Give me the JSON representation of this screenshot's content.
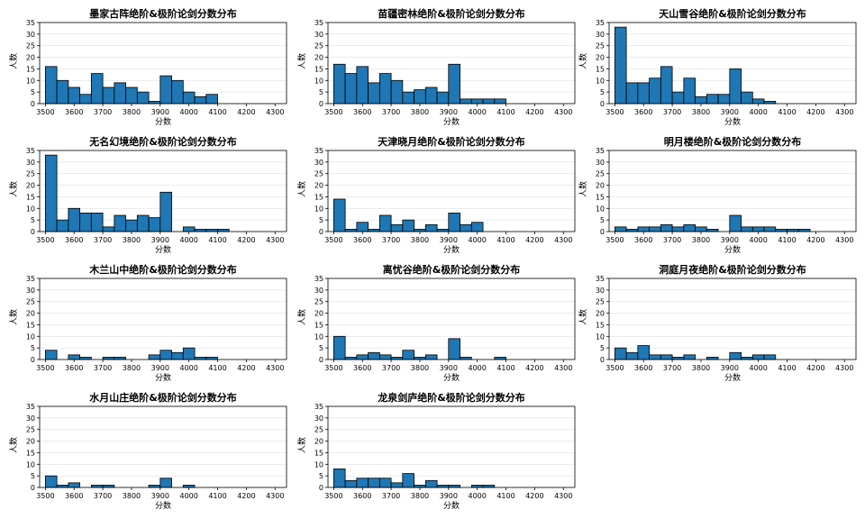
{
  "colors": {
    "bar": "#1f77b4",
    "edge": "#000000",
    "grid": "#d9d9d9"
  },
  "chart_data": [
    {
      "type": "bar",
      "title": "墨家古阵绝阶&极阶论剑分数分布",
      "xlabel": "分数",
      "ylabel": "人数",
      "bin_start": 3500,
      "bin_width": 40,
      "xlim": [
        3480,
        4340
      ],
      "ylim": [
        0,
        35
      ],
      "xticks": [
        3500,
        3600,
        3700,
        3800,
        3900,
        4000,
        4100,
        4200,
        4300
      ],
      "yticks": [
        0,
        5,
        10,
        15,
        20,
        25,
        30,
        35
      ],
      "grid": "y",
      "values": [
        16,
        10,
        7,
        4,
        13,
        7,
        9,
        7,
        5,
        1,
        12,
        10,
        5,
        3,
        4,
        0,
        0,
        0,
        0,
        0,
        0
      ]
    },
    {
      "type": "bar",
      "title": "苗疆密林绝阶&极阶论剑分数分布",
      "xlabel": "分数",
      "ylabel": "人数",
      "bin_start": 3500,
      "bin_width": 40,
      "xlim": [
        3480,
        4340
      ],
      "ylim": [
        0,
        35
      ],
      "xticks": [
        3500,
        3600,
        3700,
        3800,
        3900,
        4000,
        4100,
        4200,
        4300
      ],
      "yticks": [
        0,
        5,
        10,
        15,
        20,
        25,
        30,
        35
      ],
      "grid": "y",
      "values": [
        17,
        13,
        16,
        9,
        13,
        10,
        5,
        6,
        7,
        5,
        17,
        2,
        2,
        2,
        2,
        0,
        0,
        0,
        0,
        0,
        0
      ]
    },
    {
      "type": "bar",
      "title": "天山雪谷绝阶&极阶论剑分数分布",
      "xlabel": "分数",
      "ylabel": "人数",
      "bin_start": 3500,
      "bin_width": 40,
      "xlim": [
        3480,
        4340
      ],
      "ylim": [
        0,
        35
      ],
      "xticks": [
        3500,
        3600,
        3700,
        3800,
        3900,
        4000,
        4100,
        4200,
        4300
      ],
      "yticks": [
        0,
        5,
        10,
        15,
        20,
        25,
        30,
        35
      ],
      "grid": "y",
      "values": [
        33,
        9,
        9,
        11,
        16,
        5,
        11,
        3,
        4,
        4,
        15,
        5,
        2,
        1,
        0,
        0,
        0,
        0,
        0,
        0,
        0
      ]
    },
    {
      "type": "bar",
      "title": "无名幻境绝阶&极阶论剑分数分布",
      "xlabel": "分数",
      "ylabel": "人数",
      "bin_start": 3500,
      "bin_width": 40,
      "xlim": [
        3480,
        4340
      ],
      "ylim": [
        0,
        35
      ],
      "xticks": [
        3500,
        3600,
        3700,
        3800,
        3900,
        4000,
        4100,
        4200,
        4300
      ],
      "yticks": [
        0,
        5,
        10,
        15,
        20,
        25,
        30,
        35
      ],
      "grid": "y",
      "values": [
        33,
        5,
        10,
        8,
        8,
        2,
        7,
        5,
        7,
        6,
        17,
        0,
        2,
        1,
        1,
        1,
        0,
        0,
        0,
        0,
        0
      ]
    },
    {
      "type": "bar",
      "title": "天津晓月绝阶&极阶论剑分数分布",
      "xlabel": "分数",
      "ylabel": "人数",
      "bin_start": 3500,
      "bin_width": 40,
      "xlim": [
        3480,
        4340
      ],
      "ylim": [
        0,
        35
      ],
      "xticks": [
        3500,
        3600,
        3700,
        3800,
        3900,
        4000,
        4100,
        4200,
        4300
      ],
      "yticks": [
        0,
        5,
        10,
        15,
        20,
        25,
        30,
        35
      ],
      "grid": "y",
      "values": [
        14,
        1,
        4,
        1,
        7,
        3,
        5,
        1,
        3,
        1,
        8,
        3,
        4,
        0,
        0,
        0,
        0,
        0,
        0,
        0,
        0
      ]
    },
    {
      "type": "bar",
      "title": "明月楼绝阶&极阶论剑分数分布",
      "xlabel": "分数",
      "ylabel": "人数",
      "bin_start": 3500,
      "bin_width": 40,
      "xlim": [
        3480,
        4340
      ],
      "ylim": [
        0,
        35
      ],
      "xticks": [
        3500,
        3600,
        3700,
        3800,
        3900,
        4000,
        4100,
        4200,
        4300
      ],
      "yticks": [
        0,
        5,
        10,
        15,
        20,
        25,
        30,
        35
      ],
      "grid": "y",
      "values": [
        2,
        1,
        2,
        2,
        3,
        2,
        3,
        2,
        1,
        0,
        7,
        2,
        2,
        2,
        1,
        1,
        1,
        0,
        0,
        0,
        0
      ]
    },
    {
      "type": "bar",
      "title": "木兰山中绝阶&极阶论剑分数分布",
      "xlabel": "分数",
      "ylabel": "人数",
      "bin_start": 3500,
      "bin_width": 40,
      "xlim": [
        3480,
        4340
      ],
      "ylim": [
        0,
        35
      ],
      "xticks": [
        3500,
        3600,
        3700,
        3800,
        3900,
        4000,
        4100,
        4200,
        4300
      ],
      "yticks": [
        0,
        5,
        10,
        15,
        20,
        25,
        30,
        35
      ],
      "grid": "y",
      "values": [
        4,
        0,
        2,
        1,
        0,
        1,
        1,
        0,
        0,
        2,
        4,
        3,
        5,
        1,
        1,
        0,
        0,
        0,
        0,
        0,
        0
      ]
    },
    {
      "type": "bar",
      "title": "离忧谷绝阶&极阶论剑分数分布",
      "xlabel": "分数",
      "ylabel": "人数",
      "bin_start": 3500,
      "bin_width": 40,
      "xlim": [
        3480,
        4340
      ],
      "ylim": [
        0,
        35
      ],
      "xticks": [
        3500,
        3600,
        3700,
        3800,
        3900,
        4000,
        4100,
        4200,
        4300
      ],
      "yticks": [
        0,
        5,
        10,
        15,
        20,
        25,
        30,
        35
      ],
      "grid": "y",
      "values": [
        10,
        1,
        2,
        3,
        2,
        1,
        4,
        1,
        2,
        0,
        9,
        1,
        0,
        0,
        1,
        0,
        0,
        0,
        0,
        0,
        0
      ]
    },
    {
      "type": "bar",
      "title": "洞庭月夜绝阶&极阶论剑分数分布",
      "xlabel": "分数",
      "ylabel": "人数",
      "bin_start": 3500,
      "bin_width": 40,
      "xlim": [
        3480,
        4340
      ],
      "ylim": [
        0,
        35
      ],
      "xticks": [
        3500,
        3600,
        3700,
        3800,
        3900,
        4000,
        4100,
        4200,
        4300
      ],
      "yticks": [
        0,
        5,
        10,
        15,
        20,
        25,
        30,
        35
      ],
      "grid": "y",
      "values": [
        5,
        3,
        6,
        2,
        2,
        1,
        2,
        0,
        1,
        0,
        3,
        1,
        2,
        2,
        0,
        0,
        0,
        0,
        0,
        0,
        0
      ]
    },
    {
      "type": "bar",
      "title": "水月山庄绝阶&极阶论剑分数分布",
      "xlabel": "分数",
      "ylabel": "人数",
      "bin_start": 3500,
      "bin_width": 40,
      "xlim": [
        3480,
        4340
      ],
      "ylim": [
        0,
        35
      ],
      "xticks": [
        3500,
        3600,
        3700,
        3800,
        3900,
        4000,
        4100,
        4200,
        4300
      ],
      "yticks": [
        0,
        5,
        10,
        15,
        20,
        25,
        30,
        35
      ],
      "grid": "y",
      "values": [
        5,
        1,
        2,
        0,
        1,
        1,
        0,
        0,
        0,
        1,
        4,
        0,
        1,
        0,
        0,
        0,
        0,
        0,
        0,
        0,
        0
      ]
    },
    {
      "type": "bar",
      "title": "龙泉剑庐绝阶&极阶论剑分数分布",
      "xlabel": "分数",
      "ylabel": "人数",
      "bin_start": 3500,
      "bin_width": 40,
      "xlim": [
        3480,
        4340
      ],
      "ylim": [
        0,
        35
      ],
      "xticks": [
        3500,
        3600,
        3700,
        3800,
        3900,
        4000,
        4100,
        4200,
        4300
      ],
      "yticks": [
        0,
        5,
        10,
        15,
        20,
        25,
        30,
        35
      ],
      "grid": "y",
      "values": [
        8,
        3,
        4,
        4,
        4,
        2,
        6,
        1,
        3,
        1,
        1,
        0,
        1,
        1,
        0,
        0,
        0,
        0,
        0,
        0,
        0
      ]
    }
  ]
}
